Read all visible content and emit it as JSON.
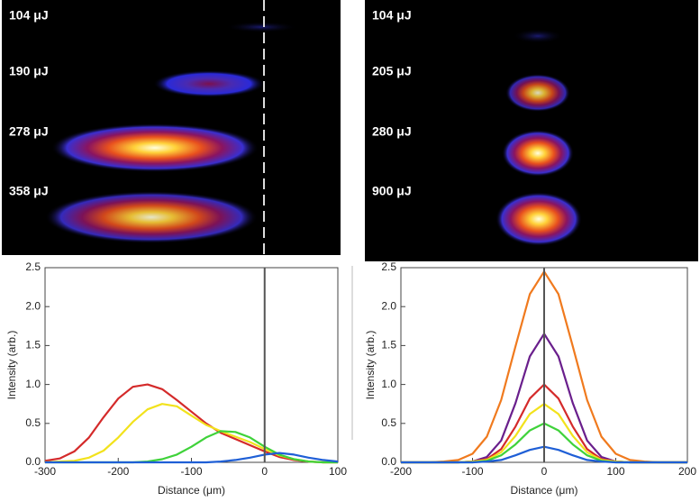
{
  "images": [
    {
      "labels": [
        "104 μJ",
        "190 μJ",
        "278 μJ",
        "358 μJ"
      ]
    },
    {
      "labels": [
        "104 μJ",
        "205 μJ",
        "280 μJ",
        "900 μJ"
      ]
    }
  ],
  "chart_data": [
    {
      "type": "line",
      "xlabel": "Distance (μm)",
      "ylabel": "Intensity (arb.)",
      "x": [
        -300,
        -280,
        -260,
        -240,
        -220,
        -200,
        -180,
        -160,
        -140,
        -120,
        -100,
        -80,
        -60,
        -40,
        -20,
        0,
        20,
        40,
        60,
        80,
        100
      ],
      "series": [
        {
          "color": "#d42a2a",
          "values": [
            0.02,
            0.05,
            0.14,
            0.32,
            0.58,
            0.82,
            0.97,
            1.0,
            0.94,
            0.8,
            0.65,
            0.5,
            0.38,
            0.3,
            0.22,
            0.14,
            0.07,
            0.03,
            0.01,
            0,
            0
          ]
        },
        {
          "color": "#f2e21c",
          "values": [
            0,
            0.01,
            0.02,
            0.06,
            0.15,
            0.32,
            0.52,
            0.68,
            0.75,
            0.72,
            0.6,
            0.48,
            0.4,
            0.33,
            0.26,
            0.17,
            0.09,
            0.04,
            0.01,
            0,
            0
          ]
        },
        {
          "color": "#3fd23a",
          "values": [
            0,
            0,
            0,
            0,
            0,
            0,
            0,
            0.01,
            0.04,
            0.1,
            0.2,
            0.32,
            0.4,
            0.39,
            0.32,
            0.2,
            0.1,
            0.04,
            0.01,
            0,
            0
          ]
        },
        {
          "color": "#1f5fd6",
          "values": [
            0,
            0,
            0,
            0,
            0,
            0,
            0,
            0,
            0,
            0,
            0,
            0,
            0.01,
            0.03,
            0.06,
            0.1,
            0.12,
            0.1,
            0.06,
            0.03,
            0.01
          ]
        }
      ],
      "xlim": [
        -300,
        100
      ],
      "xticks": [
        -300,
        -200,
        -100,
        0,
        100
      ],
      "ylim": [
        0,
        2.5
      ],
      "yticks": [
        {
          "value": 0,
          "label": "0.0"
        },
        0.5,
        {
          "value": 1,
          "label": "1.0"
        },
        1.5,
        {
          "value": 2,
          "label": "2.0"
        },
        2.5
      ],
      "reference_line_x": 0
    },
    {
      "type": "line",
      "xlabel": "Distance (μm)",
      "ylabel": "Intensity (arb.)",
      "x": [
        -200,
        -180,
        -160,
        -140,
        -120,
        -100,
        -80,
        -60,
        -40,
        -20,
        0,
        20,
        40,
        60,
        80,
        100,
        120,
        140,
        160,
        180,
        200
      ],
      "series": [
        {
          "color": "#f07a1e",
          "values": [
            0,
            0,
            0,
            0.01,
            0.03,
            0.11,
            0.33,
            0.8,
            1.49,
            2.16,
            2.45,
            2.16,
            1.49,
            0.8,
            0.33,
            0.11,
            0.03,
            0.01,
            0,
            0,
            0
          ]
        },
        {
          "color": "#6a1f8c",
          "values": [
            0,
            0,
            0,
            0,
            0,
            0.01,
            0.07,
            0.28,
            0.76,
            1.36,
            1.65,
            1.36,
            0.76,
            0.28,
            0.07,
            0.01,
            0,
            0,
            0,
            0,
            0
          ]
        },
        {
          "color": "#d42a2a",
          "values": [
            0,
            0,
            0,
            0,
            0,
            0.01,
            0.04,
            0.17,
            0.46,
            0.82,
            1.0,
            0.82,
            0.46,
            0.17,
            0.04,
            0.01,
            0,
            0,
            0,
            0,
            0
          ]
        },
        {
          "color": "#f2e21c",
          "values": [
            0,
            0,
            0,
            0,
            0,
            0.01,
            0.03,
            0.13,
            0.34,
            0.62,
            0.75,
            0.62,
            0.34,
            0.13,
            0.03,
            0.01,
            0,
            0,
            0,
            0,
            0
          ]
        },
        {
          "color": "#3fd23a",
          "values": [
            0,
            0,
            0,
            0,
            0,
            0,
            0.02,
            0.09,
            0.23,
            0.41,
            0.5,
            0.41,
            0.23,
            0.09,
            0.02,
            0,
            0,
            0,
            0,
            0,
            0
          ]
        },
        {
          "color": "#1f5fd6",
          "values": [
            0,
            0,
            0,
            0,
            0,
            0,
            0.01,
            0.03,
            0.09,
            0.16,
            0.2,
            0.16,
            0.09,
            0.03,
            0.01,
            0,
            0,
            0,
            0,
            0,
            0
          ]
        }
      ],
      "xlim": [
        -200,
        200
      ],
      "xticks": [
        -200,
        -100,
        0,
        100,
        200
      ],
      "ylim": [
        0,
        2.5
      ],
      "yticks": [
        {
          "value": 0,
          "label": "0.0"
        },
        0.5,
        {
          "value": 1,
          "label": "1.0"
        },
        1.5,
        {
          "value": 2,
          "label": "2.0"
        },
        2.5
      ],
      "reference_line_x": 0
    }
  ]
}
